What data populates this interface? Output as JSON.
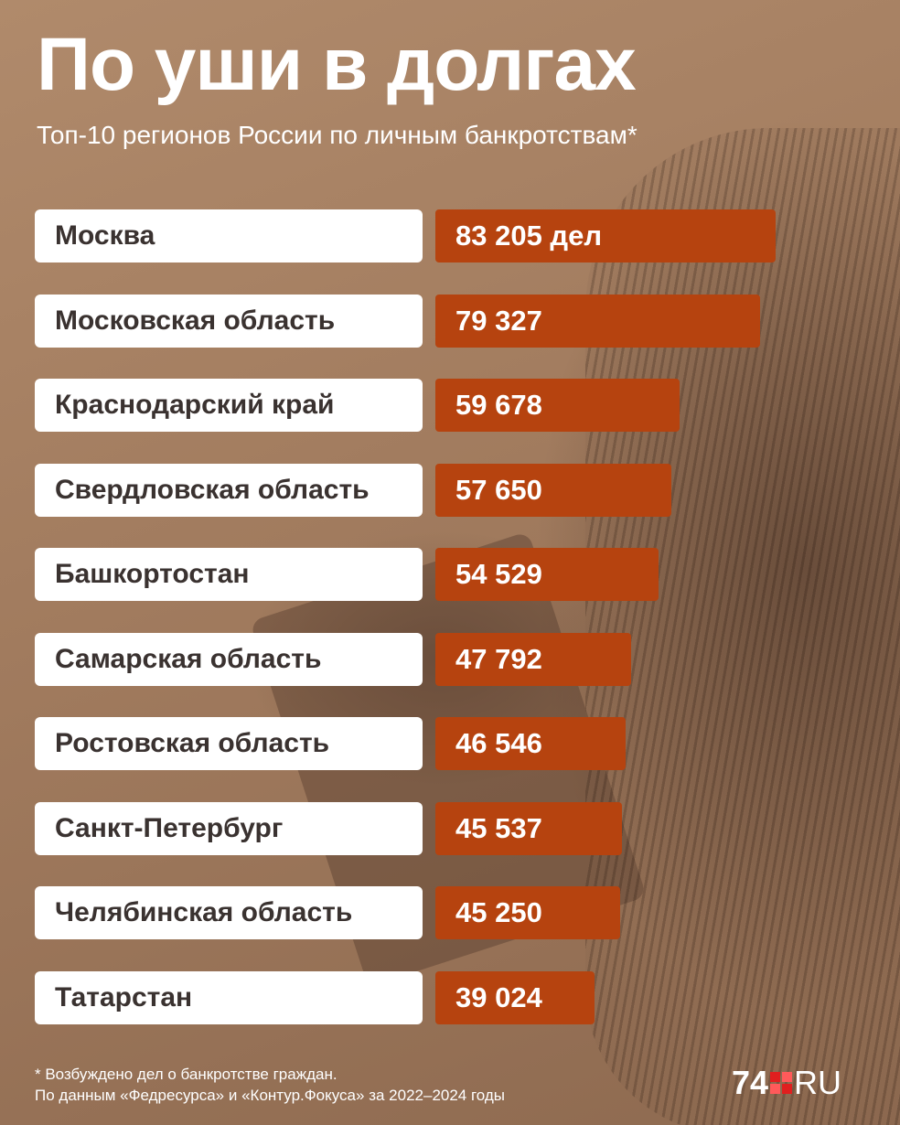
{
  "header": {
    "title": "По уши в долгах",
    "subtitle": "Топ-10 регионов России по личным банкротствам*"
  },
  "chart_data": {
    "type": "bar",
    "orientation": "horizontal",
    "title": "По уши в долгах",
    "subtitle": "Топ-10 регионов России по личным банкротствам*",
    "categories": [
      "Москва",
      "Московская область",
      "Краснодарский край",
      "Свердловская область",
      "Башкортостан",
      "Самарская область",
      "Ростовская область",
      "Санкт-Петербург",
      "Челябинская область",
      "Татарстан"
    ],
    "values": [
      83205,
      79327,
      59678,
      57650,
      54529,
      47792,
      46546,
      45537,
      45250,
      39024
    ],
    "value_labels": [
      "83 205 дел",
      "79 327",
      "59 678",
      "57 650",
      "54 529",
      "47 792",
      "46 546",
      "45 537",
      "45 250",
      "39 024"
    ],
    "bar_color": "#b6430f"
  },
  "footnote": {
    "line1": "* Возбуждено дел о банкротстве граждан.",
    "line2": "По данным «Федресурса» и «Контур.Фокуса» за 2022–2024 годы"
  },
  "logo": {
    "number": "74",
    "suffix": "RU",
    "icon": "four-squares-logo-icon"
  }
}
